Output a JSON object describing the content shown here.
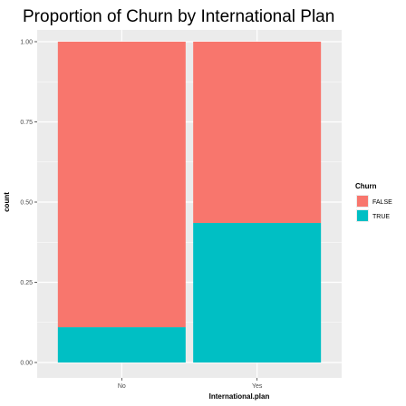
{
  "chart_data": {
    "type": "bar",
    "stacked": true,
    "position": "fill",
    "title": "Proportion of Churn by International Plan",
    "xlabel": "International.plan",
    "ylabel": "count",
    "categories": [
      "No",
      "Yes"
    ],
    "series": [
      {
        "name": "FALSE",
        "values": [
          0.89,
          0.565
        ],
        "color": "#F8766D"
      },
      {
        "name": "TRUE",
        "values": [
          0.11,
          0.435
        ],
        "color": "#00BFC4"
      }
    ],
    "ylim": [
      0,
      1
    ],
    "yticks": [
      0,
      0.25,
      0.5,
      0.75,
      1
    ],
    "ytick_labels": [
      "0.00",
      "0.25",
      "0.50",
      "0.75",
      "1.00"
    ],
    "grid": true,
    "legend": {
      "title": "Churn",
      "placement": "right"
    }
  },
  "colors": {
    "panel_background": "#EBEBEB",
    "gridline": "#FFFFFF"
  }
}
